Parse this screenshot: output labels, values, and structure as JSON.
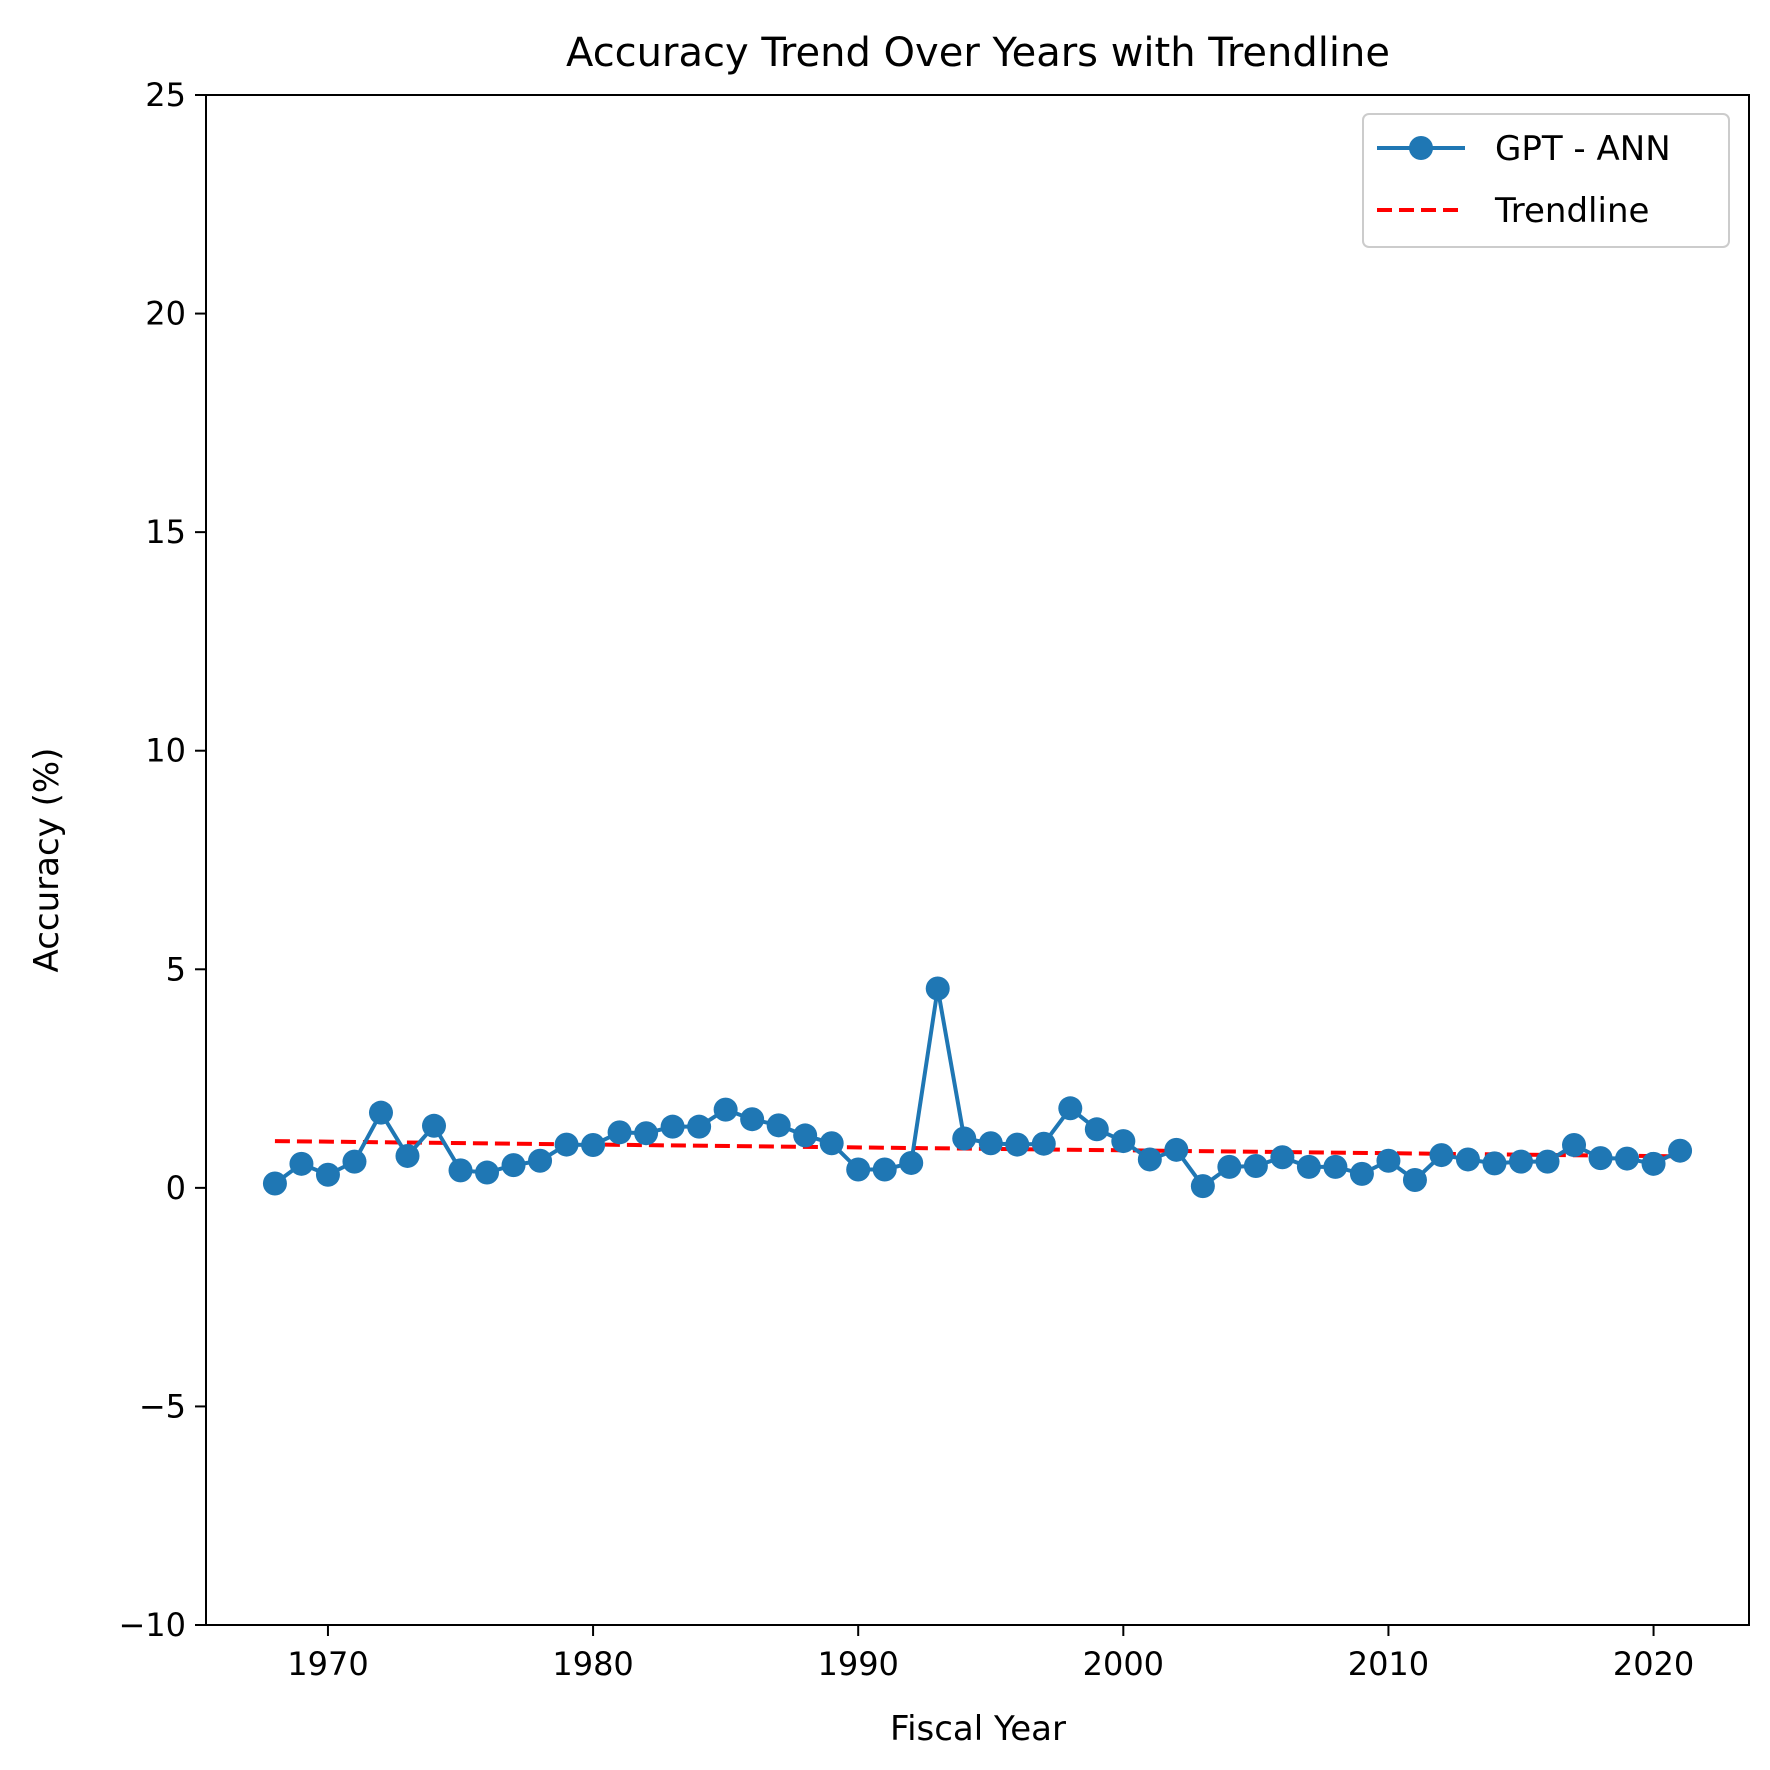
{
  "chart_data": {
    "type": "line",
    "title": "Accuracy Trend Over Years with Trendline",
    "xlabel": "Fiscal Year",
    "ylabel": "Accuracy (%)",
    "xlim": [
      1965.4,
      2023.6
    ],
    "ylim": [
      -10,
      25
    ],
    "xticks": [
      1970,
      1980,
      1990,
      2000,
      2010,
      2020
    ],
    "yticks": [
      -10,
      -5,
      0,
      5,
      10,
      15,
      20,
      25
    ],
    "ytick_labels": [
      "−10",
      "−5",
      "0",
      "5",
      "10",
      "15",
      "20",
      "25"
    ],
    "grid": false,
    "legend_position": "top-right",
    "series": [
      {
        "name": "GPT - ANN",
        "color": "#1f77b4",
        "marker": "circle",
        "x": [
          1968,
          1969,
          1970,
          1971,
          1972,
          1973,
          1974,
          1975,
          1976,
          1977,
          1978,
          1979,
          1980,
          1981,
          1982,
          1983,
          1984,
          1985,
          1986,
          1987,
          1988,
          1989,
          1990,
          1991,
          1992,
          1993,
          1994,
          1995,
          1996,
          1997,
          1998,
          1999,
          2000,
          2001,
          2002,
          2003,
          2004,
          2005,
          2006,
          2007,
          2008,
          2009,
          2010,
          2011,
          2012,
          2013,
          2014,
          2015,
          2016,
          2017,
          2018,
          2019,
          2020,
          2021
        ],
        "y": [
          0.1,
          0.55,
          0.3,
          0.6,
          1.72,
          0.73,
          1.42,
          0.4,
          0.35,
          0.52,
          0.62,
          0.99,
          0.98,
          1.27,
          1.25,
          1.4,
          1.4,
          1.79,
          1.57,
          1.43,
          1.2,
          1.02,
          0.42,
          0.42,
          0.57,
          4.56,
          1.13,
          1.02,
          0.99,
          1.01,
          1.82,
          1.34,
          1.07,
          0.65,
          0.87,
          0.04,
          0.48,
          0.5,
          0.7,
          0.48,
          0.48,
          0.32,
          0.62,
          0.18,
          0.75,
          0.65,
          0.56,
          0.6,
          0.6,
          0.98,
          0.68,
          0.67,
          0.55,
          0.85
        ]
      },
      {
        "name": "Trendline",
        "color": "#ff0000",
        "style": "dashed",
        "x": [
          1968,
          2021
        ],
        "y": [
          1.07,
          0.72
        ]
      }
    ]
  }
}
